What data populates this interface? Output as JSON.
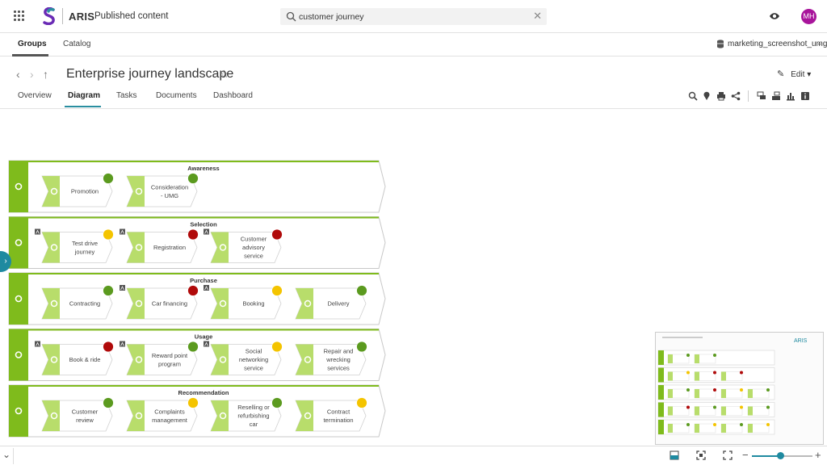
{
  "header": {
    "brand": "ARIS",
    "app_title": "Published content",
    "search_value": "customer journey",
    "clear_symbol": "✕",
    "avatar_initials": "MH",
    "avatar_color": "#a8149b"
  },
  "nav": {
    "tabs": [
      {
        "label": "Groups"
      },
      {
        "label": "Catalog"
      }
    ],
    "database": "marketing_screenshot_umg"
  },
  "page": {
    "title": "Enterprise journey landscape",
    "edit_label": "Edit",
    "tabs": [
      {
        "label": "Overview"
      },
      {
        "label": "Diagram"
      },
      {
        "label": "Tasks"
      },
      {
        "label": "Documents"
      },
      {
        "label": "Dashboard"
      }
    ]
  },
  "colors": {
    "lane_green": "#7fbb1c",
    "chevron_green": "#b8dd6b",
    "status_green": "#5b9a1f",
    "status_yellow": "#f4c400",
    "status_red": "#b00a0a",
    "accent": "#1f8aa0"
  },
  "diagram": {
    "lanes": [
      {
        "title": "Awareness",
        "steps": [
          {
            "label": "Promotion",
            "status": "green",
            "marker": false
          },
          {
            "label": "Consideration\n- UMG",
            "status": "green",
            "marker": false
          }
        ]
      },
      {
        "title": "Selection",
        "steps": [
          {
            "label": "Test drive\njourney",
            "status": "yellow",
            "marker": true
          },
          {
            "label": "Registration",
            "status": "red",
            "marker": true
          },
          {
            "label": "Customer\nadvisory\nservice",
            "status": "red",
            "marker": true
          }
        ]
      },
      {
        "title": "Purchase",
        "steps": [
          {
            "label": "Contracting",
            "status": "green",
            "marker": false
          },
          {
            "label": "Car financing",
            "status": "red",
            "marker": true
          },
          {
            "label": "Booking",
            "status": "yellow",
            "marker": true
          },
          {
            "label": "Delivery",
            "status": "green",
            "marker": false
          }
        ]
      },
      {
        "title": "Usage",
        "steps": [
          {
            "label": "Book & ride",
            "status": "red",
            "marker": true
          },
          {
            "label": "Reward point\nprogram",
            "status": "green",
            "marker": true
          },
          {
            "label": "Social\nnetworking\nservice",
            "status": "yellow",
            "marker": true
          },
          {
            "label": "Repair and\nwrecking\nservices",
            "status": "green",
            "marker": false
          }
        ]
      },
      {
        "title": "Recommendation",
        "steps": [
          {
            "label": "Customer\nreview",
            "status": "green",
            "marker": false
          },
          {
            "label": "Complaints\nmanagement",
            "status": "yellow",
            "marker": false
          },
          {
            "label": "Reselling or\nrefurbishing\ncar",
            "status": "green",
            "marker": false
          },
          {
            "label": "Contract\ntermination",
            "status": "yellow",
            "marker": false
          }
        ]
      }
    ]
  },
  "minimap": {
    "label": "ARIS"
  }
}
